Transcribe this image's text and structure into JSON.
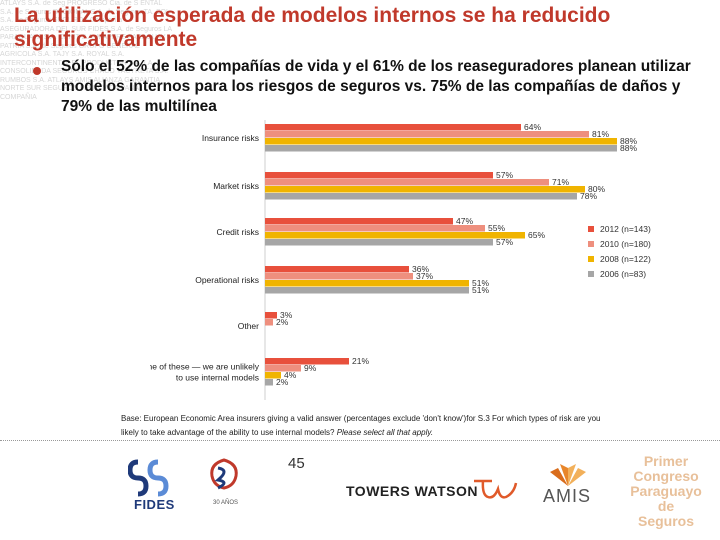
{
  "title": "La utilización esperada de modelos internos se ha reducido significativamente",
  "bullet": "Sólo el 52% de las compañías de vida y el 61% de los reaseguradores planean utilizar modelos internos para los riesgos de seguros vs. 75% de las compañías de daños y 79% de las multilínea",
  "colors": {
    "2012": "#e8503c",
    "2010": "#ee8f7e",
    "2008": "#f0b400",
    "2006": "#a6a6a6"
  },
  "chart_data": {
    "type": "bar",
    "orientation": "horizontal",
    "categories": [
      "Insurance risks",
      "Market risks",
      "Credit risks",
      "Operational risks",
      "Other",
      "None of these — we are unlikely to use internal models"
    ],
    "category_lines": [
      [
        "Insurance risks"
      ],
      [
        "Market risks"
      ],
      [
        "Credit risks"
      ],
      [
        "Operational risks"
      ],
      [
        "Other"
      ],
      [
        "None of these — we are unlikely",
        "to use internal models"
      ]
    ],
    "series": [
      {
        "name": "2012 (n=143)",
        "values": [
          64,
          57,
          47,
          36,
          3,
          21
        ]
      },
      {
        "name": "2010 (n=180)",
        "values": [
          81,
          71,
          55,
          37,
          2,
          9
        ]
      },
      {
        "name": "2008 (n=122)",
        "values": [
          88,
          80,
          65,
          51,
          0,
          4
        ]
      },
      {
        "name": "2006 (n=83)",
        "values": [
          88,
          78,
          57,
          51,
          0,
          2
        ]
      }
    ],
    "labels": [
      [
        "64%",
        "57%",
        "47%",
        "36%",
        "3%",
        "21%"
      ],
      [
        "81%",
        "71%",
        "55%",
        "37%",
        "2%",
        "9%"
      ],
      [
        "88%",
        "80%",
        "65%",
        "51%",
        "",
        "4%"
      ],
      [
        "88%",
        "78%",
        "57%",
        "51%",
        "",
        "2%"
      ]
    ],
    "xlim": [
      0,
      100
    ],
    "legend_position": "right",
    "grid": false
  },
  "footnote_line1": "Base: European Economic Area insurers giving a valid answer (percentages exclude 'don't know')for S.3 For which types of risk are you",
  "footnote_line2_normal": "likely to take advantage of the ability to use internal models? ",
  "footnote_line2_italic": "Please select all that apply.",
  "page_number": "45",
  "logos": {
    "fides": "FIDES",
    "years": "30 AÑOS",
    "towers_watson": "TOWERS WATSON",
    "amis": "AMIS",
    "congreso": [
      "Primer",
      "Congreso",
      "Paraguayo",
      "de Seguros"
    ]
  },
  "background_text": "ATLAYS S.A. de Seg PROGRESO Cia. de S ENTAL S.A. de Seguros REGIONAL S.A. de Seguros TA. SOL S.A. de Seguros SEGUROS Compañía ASEGURADORA DEL SUR FIDES S.A. de Seguros LA PARAGUAYA S.A. CENIT S.A. MAPFRE PARAGUAY PATRIA S.A. de Seguros GRUPO GENERAL AGRICOLA S.A. TAJY S.A. ROYAL S.A. INTERCONTINENTAL EL PRODUCTOR S.A. LA CONSOLIDADA SEGUROS CHACO YACYRETA S.A. RUMBOS S.A. ATLAYS AMIS ALIANZA GARANTIA NORTE SUR SEGUROS FENIX VIDA PANAL COMPAÑIA"
}
